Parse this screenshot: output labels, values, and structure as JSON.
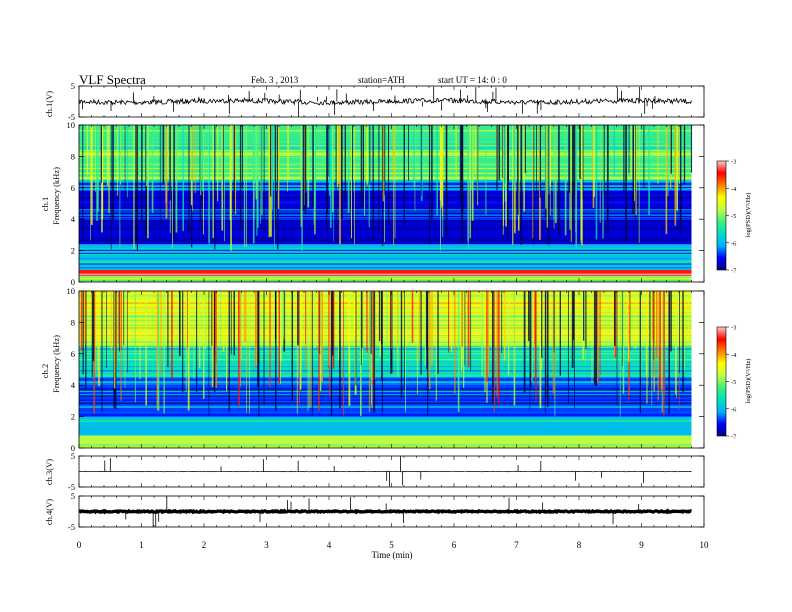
{
  "header": {
    "title": "VLF  Spectra",
    "date": "Feb. 3  , 2013",
    "station": "station=ATH",
    "start": "start  UT =   14: 0  : 0"
  },
  "panels": {
    "ch1_wave_label": "ch.1(V)",
    "ch1_spec_label_a": "ch.1",
    "ch1_spec_label_b": "Frequency  (kHz)",
    "ch2_spec_label_a": "ch.2",
    "ch2_spec_label_b": "Frequency  (kHz)",
    "ch3_wave_label": "ch.3(V)",
    "ch4_wave_label": "ch.4(V)"
  },
  "colorbar": {
    "label": "log(PSD)(V²/Hz)",
    "ticks": [
      "-3",
      "-4",
      "-5",
      "-6",
      "-7"
    ],
    "stops": [
      "#000080",
      "#0000ff",
      "#00b0ff",
      "#00e0c0",
      "#40f080",
      "#c0ff40",
      "#ffff00",
      "#ff8000",
      "#ff0000",
      "#ffc8c8"
    ]
  },
  "chart_data": [
    {
      "type": "line",
      "name": "ch.1 waveform",
      "ylabel": "ch.1(V)",
      "ylim": [
        -5,
        5
      ],
      "yticks": [
        "5",
        "-5"
      ],
      "baseline_value": 0,
      "x_range_min": [
        0,
        9.8
      ]
    },
    {
      "type": "heatmap",
      "name": "ch.1 spectrogram",
      "ylabel": "Frequency  (kHz)",
      "ylim": [
        0,
        10
      ],
      "yticks": [
        "0",
        "2",
        "4",
        "6",
        "8",
        "10"
      ],
      "zlim": [
        -7,
        -3
      ],
      "x_range_min": [
        0,
        9.8
      ],
      "band_psd": [
        {
          "freq_khz": [
            0.0,
            0.4
          ],
          "log_psd": -5.0
        },
        {
          "freq_khz": [
            0.4,
            0.8
          ],
          "log_psd": -3.4
        },
        {
          "freq_khz": [
            0.8,
            2.4
          ],
          "log_psd": -6.0
        },
        {
          "freq_khz": [
            2.4,
            5.8
          ],
          "log_psd": -6.7
        },
        {
          "freq_khz": [
            5.8,
            6.5
          ],
          "log_psd": -6.0
        },
        {
          "freq_khz": [
            6.5,
            10.0
          ],
          "log_psd": -5.3
        }
      ]
    },
    {
      "type": "heatmap",
      "name": "ch.2 spectrogram",
      "ylabel": "Frequency  (kHz)",
      "ylim": [
        0,
        10
      ],
      "yticks": [
        "0",
        "2",
        "4",
        "6",
        "8",
        "10"
      ],
      "zlim": [
        -7,
        -3
      ],
      "x_range_min": [
        0,
        9.8
      ],
      "band_psd": [
        {
          "freq_khz": [
            0.0,
            0.3
          ],
          "log_psd": -5.0
        },
        {
          "freq_khz": [
            0.3,
            0.8
          ],
          "log_psd": -4.8
        },
        {
          "freq_khz": [
            0.8,
            2.0
          ],
          "log_psd": -6.0
        },
        {
          "freq_khz": [
            2.0,
            4.5
          ],
          "log_psd": -6.4
        },
        {
          "freq_khz": [
            4.5,
            6.5
          ],
          "log_psd": -5.6
        },
        {
          "freq_khz": [
            6.5,
            10.0
          ],
          "log_psd": -4.6
        }
      ]
    },
    {
      "type": "line",
      "name": "ch.3 waveform",
      "ylabel": "ch.3(V)",
      "ylim": [
        -5,
        5
      ],
      "yticks": [
        "5",
        "-5"
      ],
      "baseline_value": 0,
      "x_range_min": [
        0,
        9.8
      ]
    },
    {
      "type": "line",
      "name": "ch.4 waveform",
      "ylabel": "ch.4(V)",
      "ylim": [
        -5,
        5
      ],
      "yticks": [
        "5",
        "-5"
      ],
      "baseline_value": 0,
      "x_range_min": [
        0,
        9.8
      ]
    }
  ],
  "xaxis": {
    "label": "Time  (min)",
    "xlim": [
      0,
      10
    ],
    "ticks": [
      "0",
      "1",
      "2",
      "3",
      "4",
      "5",
      "6",
      "7",
      "8",
      "9",
      "10"
    ]
  }
}
